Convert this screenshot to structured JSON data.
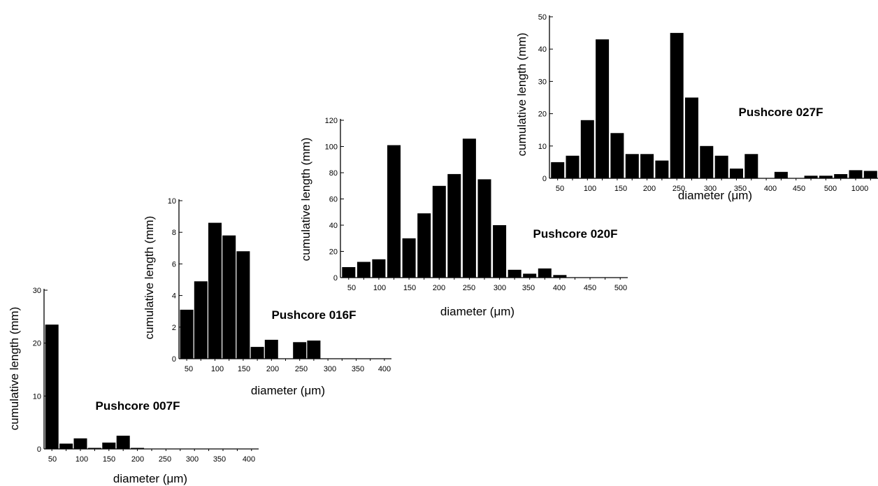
{
  "chart_data": [
    {
      "type": "bar",
      "title": "Pushcore 007F",
      "xlabel": "diameter (μm)",
      "ylabel": "cumulative length (mm)",
      "ylim": [
        0,
        30
      ],
      "yticks": [
        "0",
        "10",
        "20",
        "30"
      ],
      "xticks": [
        "50",
        "100",
        "150",
        "200",
        "250",
        "300",
        "350",
        "400"
      ],
      "categories": [
        50,
        75,
        100,
        125,
        150,
        175,
        200,
        225,
        250,
        275,
        300,
        325,
        350,
        375,
        400
      ],
      "values": [
        23.5,
        1.0,
        2.0,
        0.2,
        1.2,
        2.5,
        0.2,
        0,
        0,
        0,
        0,
        0,
        0,
        0,
        0
      ]
    },
    {
      "type": "bar",
      "title": "Pushcore 016F",
      "xlabel": "diameter (μm)",
      "ylabel": "cumulative length (mm)",
      "ylim": [
        0,
        10
      ],
      "yticks": [
        "0",
        "2",
        "4",
        "6",
        "8",
        "10"
      ],
      "xticks": [
        "50",
        "100",
        "150",
        "200",
        "250",
        "300",
        "350",
        "400"
      ],
      "categories": [
        50,
        75,
        100,
        125,
        150,
        175,
        200,
        225,
        250,
        275,
        300,
        325,
        350,
        375,
        400
      ],
      "values": [
        3.1,
        4.9,
        8.6,
        7.8,
        6.8,
        0.75,
        1.2,
        0,
        1.05,
        1.15,
        0,
        0,
        0,
        0,
        0
      ]
    },
    {
      "type": "bar",
      "title": "Pushcore 020F",
      "xlabel": "diameter (μm)",
      "ylabel": "cumulative length (mm)",
      "ylim": [
        0,
        120
      ],
      "yticks": [
        "0",
        "20",
        "40",
        "60",
        "80",
        "100",
        "120"
      ],
      "xticks": [
        "50",
        "100",
        "150",
        "200",
        "250",
        "300",
        "350",
        "400",
        "450",
        "500"
      ],
      "categories": [
        50,
        75,
        100,
        125,
        150,
        175,
        200,
        225,
        250,
        275,
        300,
        325,
        350,
        375,
        400,
        425,
        450,
        475,
        500
      ],
      "values": [
        8,
        12,
        14,
        101,
        30,
        49,
        70,
        79,
        106,
        75,
        40,
        6,
        3,
        7,
        2,
        0,
        0,
        0,
        0
      ]
    },
    {
      "type": "bar",
      "title": "Pushcore 027F",
      "xlabel": "diameter (μm)",
      "ylabel": "cumulative length (mm)",
      "ylim": [
        0,
        50
      ],
      "yticks": [
        "0",
        "10",
        "20",
        "30",
        "40",
        "50"
      ],
      "xticks": [
        "50",
        "100",
        "150",
        "200",
        "250",
        "300",
        "350",
        "400",
        "450",
        "500",
        "1000"
      ],
      "categories": [
        "50",
        "75",
        "100",
        "125",
        "150",
        "175",
        "200",
        "225",
        "250",
        "275",
        "300",
        "325",
        "350",
        "375",
        "400",
        "425",
        "450",
        "475",
        "500",
        "750",
        "1000",
        "1250"
      ],
      "values": [
        5,
        7,
        18,
        43,
        14,
        7.5,
        7.5,
        5.5,
        45,
        25,
        10,
        7,
        3,
        7.5,
        0,
        2,
        0,
        0.8,
        0.8,
        1.3,
        2.5,
        2.3
      ]
    }
  ]
}
